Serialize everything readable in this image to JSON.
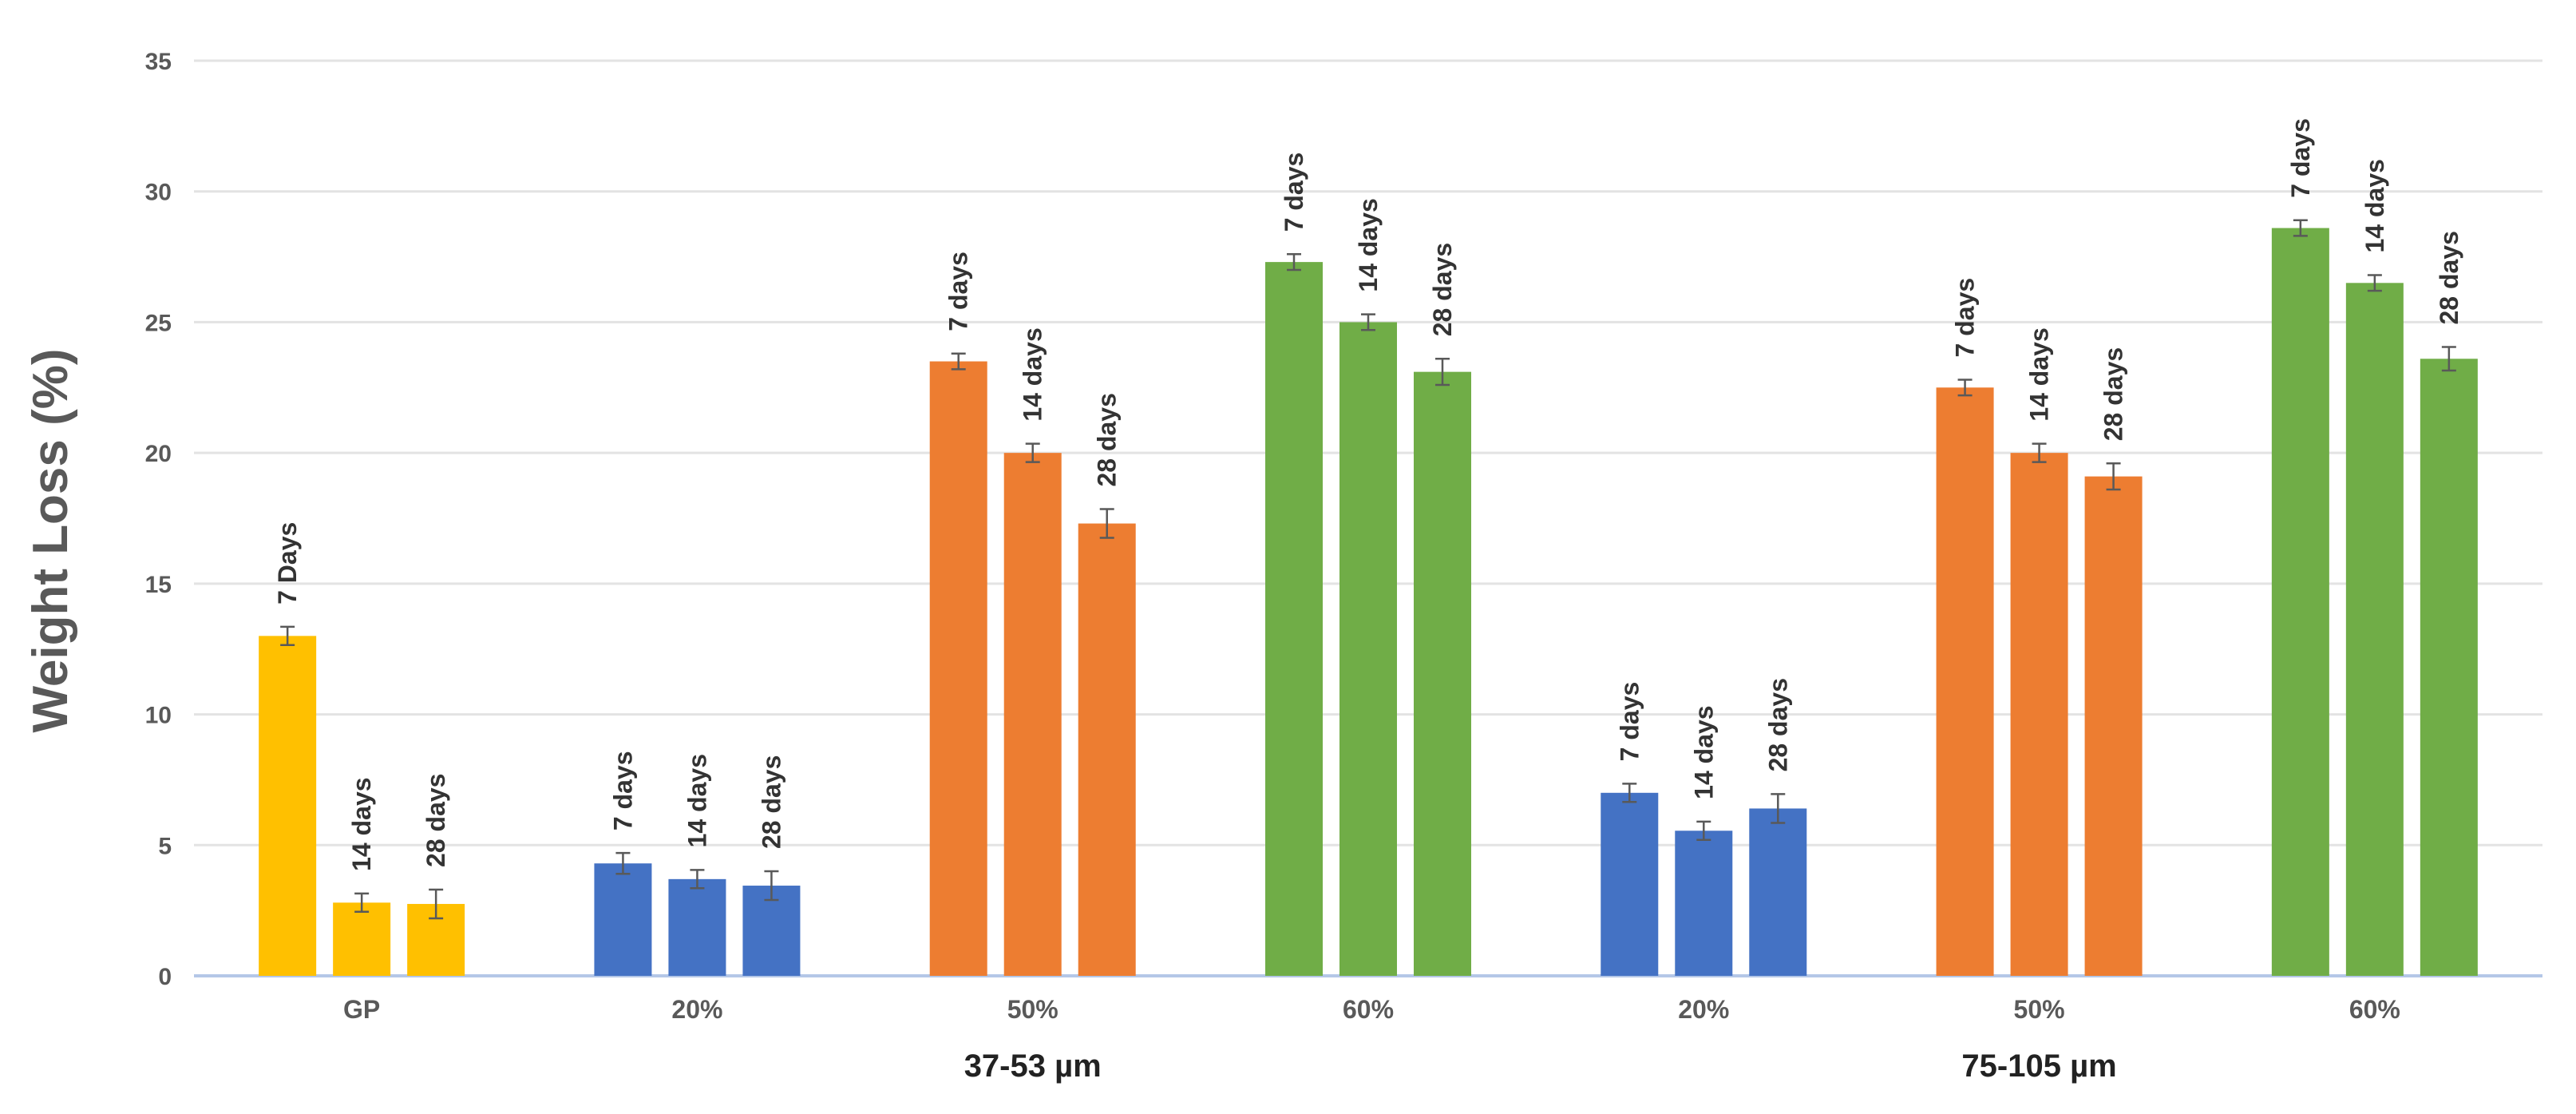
{
  "chart_data": {
    "type": "bar",
    "ylabel": "Weight Loss (%)",
    "ylim": [
      0,
      35
    ],
    "yticks": [
      0,
      5,
      10,
      15,
      20,
      25,
      30,
      35
    ],
    "grid": true,
    "categories": [
      "GP",
      "20%",
      "50%",
      "60%",
      "20%",
      "50%",
      "60%"
    ],
    "group_labels": [
      {
        "label": "37-53 µm",
        "categories": [
          1,
          2,
          3
        ]
      },
      {
        "label": "75-105 µm",
        "categories": [
          4,
          5,
          6
        ]
      }
    ],
    "bar_labels": [
      [
        "7 Days",
        "14 days",
        "28 days"
      ],
      [
        "7 days",
        "14 days",
        "28 days"
      ],
      [
        "7 days",
        "14 days",
        "28 days"
      ],
      [
        "7 days",
        "14 days",
        "28 days"
      ],
      [
        "7 days",
        "14 days",
        "28 days"
      ],
      [
        "7 days",
        "14 days",
        "28 days"
      ],
      [
        "7 days",
        "14 days",
        "28 days"
      ]
    ],
    "values": [
      [
        13.0,
        2.8,
        2.75
      ],
      [
        4.3,
        3.7,
        3.45
      ],
      [
        23.5,
        20.0,
        17.3
      ],
      [
        27.3,
        25.0,
        23.1
      ],
      [
        7.0,
        5.55,
        6.4
      ],
      [
        22.5,
        20.0,
        19.1
      ],
      [
        28.6,
        26.5,
        23.6
      ]
    ],
    "errors": [
      [
        0.35,
        0.35,
        0.55
      ],
      [
        0.4,
        0.35,
        0.55
      ],
      [
        0.3,
        0.35,
        0.55
      ],
      [
        0.3,
        0.3,
        0.5
      ],
      [
        0.35,
        0.35,
        0.55
      ],
      [
        0.3,
        0.35,
        0.5
      ],
      [
        0.3,
        0.3,
        0.45
      ]
    ],
    "category_colors": [
      "#FFC000",
      "#4472C4",
      "#ED7D31",
      "#70AD47",
      "#4472C4",
      "#ED7D31",
      "#70AD47"
    ]
  }
}
